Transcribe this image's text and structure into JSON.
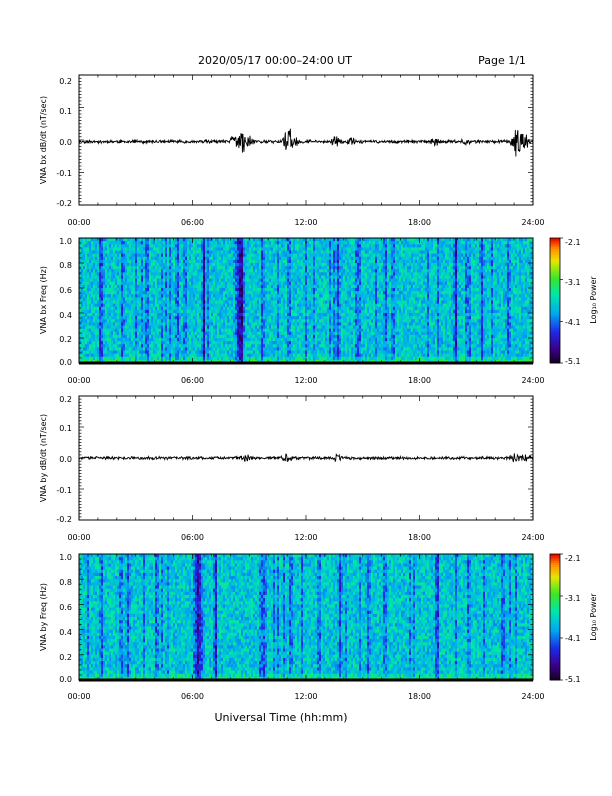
{
  "header": {
    "title": "2020/05/17  00:00–24:00 UT",
    "page": "Page 1/1"
  },
  "footer": {
    "xlabel": "Universal Time (hh:mm)"
  },
  "chart_data": [
    {
      "type": "line",
      "panel": "bx_dbdt",
      "ylabel": "VNA bx dB/dt (nT/sec)",
      "xlim": [
        0,
        24
      ],
      "ylim": [
        -0.2,
        0.2
      ],
      "x_ticks": [
        "00:00",
        "06:00",
        "12:00",
        "18:00",
        "24:00"
      ],
      "y_ticks": [
        "0.2",
        "0.1",
        "0.0",
        "-0.1",
        "-0.2"
      ],
      "baseline": -0.005,
      "noise_amplitude": 0.004,
      "events": [
        {
          "t": 8.2,
          "amp": 0.03
        },
        {
          "t": 8.6,
          "amp": 0.045
        },
        {
          "t": 9.0,
          "amp": 0.025
        },
        {
          "t": 11.0,
          "amp": 0.05
        },
        {
          "t": 11.3,
          "amp": 0.04
        },
        {
          "t": 13.6,
          "amp": 0.03
        },
        {
          "t": 14.5,
          "amp": 0.02
        },
        {
          "t": 18.8,
          "amp": 0.015
        },
        {
          "t": 20.5,
          "amp": 0.012
        },
        {
          "t": 23.1,
          "amp": 0.05
        },
        {
          "t": 23.5,
          "amp": 0.045
        }
      ]
    },
    {
      "type": "heatmap",
      "panel": "bx_spectrogram",
      "ylabel": "VNA bx Freq (Hz)",
      "xlim": [
        0,
        24
      ],
      "ylim": [
        0.0,
        1.0
      ],
      "x_ticks": [
        "00:00",
        "06:00",
        "12:00",
        "18:00",
        "24:00"
      ],
      "y_ticks": [
        "1.0",
        "0.8",
        "0.6",
        "0.4",
        "0.2",
        "0.0"
      ],
      "colorbar": {
        "label": "Log₁₀ Power",
        "range": [
          -5.1,
          -2.1
        ],
        "ticks": [
          "-2.1",
          "-3.1",
          "-4.1",
          "-5.1"
        ]
      },
      "quiet_bands_hours": [
        8.5,
        1.2,
        2.3,
        3.6,
        5.2,
        6.6,
        9.7,
        11.1,
        13.7,
        14.8,
        16.2,
        16.6,
        19.9,
        20.5,
        21.3,
        22.7
      ]
    },
    {
      "type": "line",
      "panel": "by_dbdt",
      "ylabel": "VNA by dB/dt (nT/sec)",
      "xlim": [
        0,
        24
      ],
      "ylim": [
        -0.2,
        0.2
      ],
      "x_ticks": [
        "00:00",
        "06:00",
        "12:00",
        "18:00",
        "24:00"
      ],
      "y_ticks": [
        "0.2",
        "0.1",
        "0.0",
        "-0.1",
        "-0.2"
      ],
      "baseline": 0.0,
      "noise_amplitude": 0.004,
      "events": [
        {
          "t": 8.8,
          "amp": 0.012
        },
        {
          "t": 11.0,
          "amp": 0.018
        },
        {
          "t": 13.6,
          "amp": 0.012
        },
        {
          "t": 23.1,
          "amp": 0.02
        },
        {
          "t": 23.6,
          "amp": 0.015
        }
      ]
    },
    {
      "type": "heatmap",
      "panel": "by_spectrogram",
      "ylabel": "VNA by Freq (Hz)",
      "xlim": [
        0,
        24
      ],
      "ylim": [
        0.0,
        1.0
      ],
      "x_ticks": [
        "00:00",
        "06:00",
        "12:00",
        "18:00",
        "24:00"
      ],
      "y_ticks": [
        "1.0",
        "0.8",
        "0.6",
        "0.4",
        "0.2",
        "0.0"
      ],
      "colorbar": {
        "label": "Log₁₀ Power",
        "range": [
          -5.1,
          -2.1
        ],
        "ticks": [
          "-2.1",
          "-3.1",
          "-4.1",
          "-5.1"
        ]
      },
      "quiet_bands_hours": [
        6.3,
        1.2,
        2.6,
        4.1,
        7.2,
        9.8,
        11.2,
        12.7,
        13.8,
        15.3,
        18.9,
        20.6,
        22.4
      ]
    }
  ]
}
